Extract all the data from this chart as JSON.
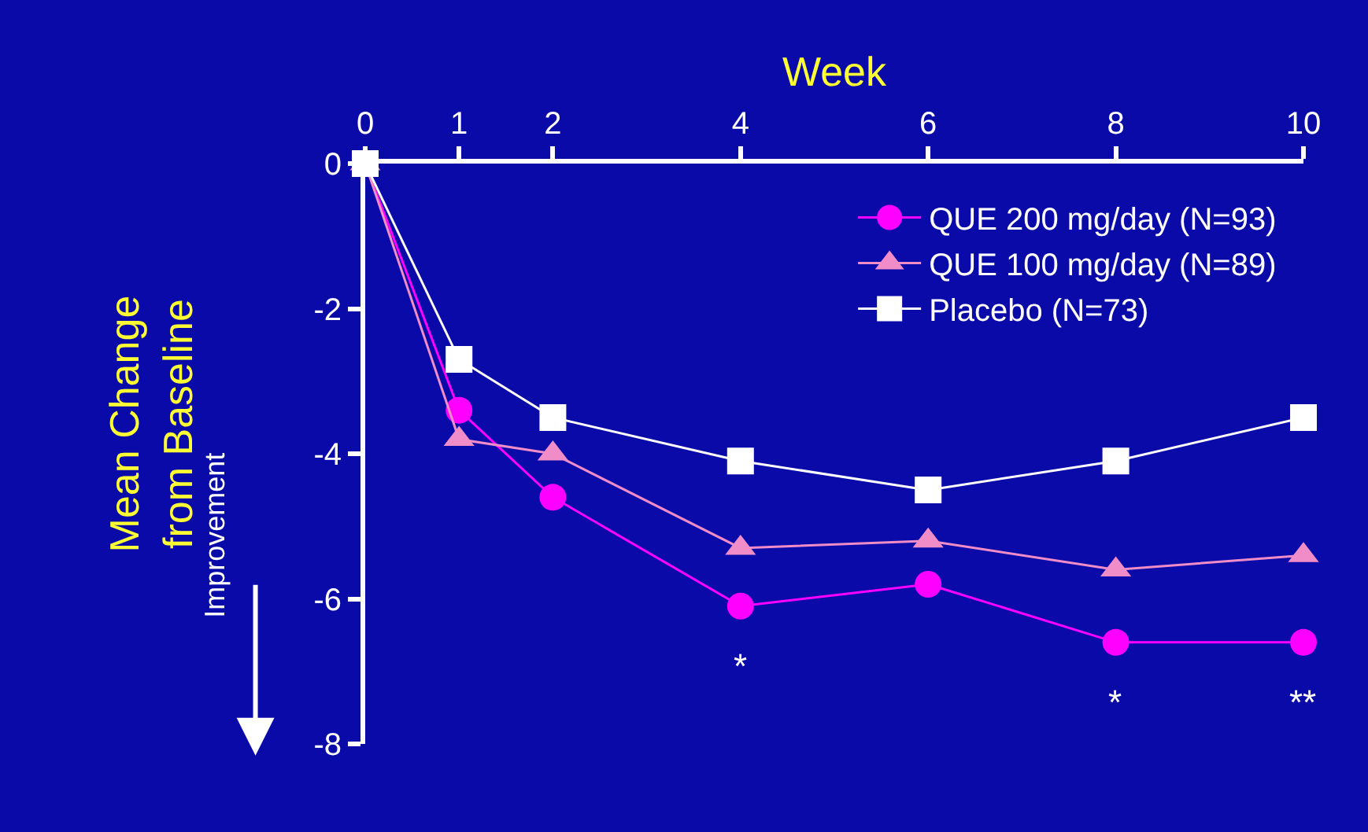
{
  "chart_data": {
    "type": "line",
    "xlabel": "Week",
    "ylabel": "Mean Change\nfrom Baseline",
    "x": [
      0,
      1,
      2,
      4,
      6,
      8,
      10
    ],
    "series": [
      {
        "name": "QUE 200 mg/day (N=93)",
        "color": "#ff00ff",
        "marker": "circle",
        "values": [
          0,
          -3.4,
          -4.6,
          -6.1,
          -5.8,
          -6.6,
          -6.6
        ]
      },
      {
        "name": "QUE 100 mg/day (N=89)",
        "color": "#f08cc8",
        "marker": "triangle",
        "values": [
          0,
          -3.8,
          -4.0,
          -5.3,
          -5.2,
          -5.6,
          -5.4
        ]
      },
      {
        "name": "Placebo (N=73)",
        "color": "#ffffff",
        "marker": "square",
        "values": [
          0,
          -2.7,
          -3.5,
          -4.1,
          -4.5,
          -4.1,
          -3.5
        ]
      }
    ],
    "xlim": [
      0,
      10
    ],
    "xticks": [
      0,
      1,
      2,
      4,
      6,
      8,
      10
    ],
    "ylim": [
      -8,
      0
    ],
    "yticks": [
      0,
      -2,
      -4,
      -6,
      -8
    ],
    "grid": false,
    "legend": "top right",
    "line_style": "solid",
    "annotations": [
      {
        "text": "*",
        "x": 4,
        "y": -6.1
      },
      {
        "text": "*",
        "x": 8,
        "y": -6.6
      },
      {
        "text": "**",
        "x": 10,
        "y": -6.6
      },
      "Improvement"
    ]
  }
}
